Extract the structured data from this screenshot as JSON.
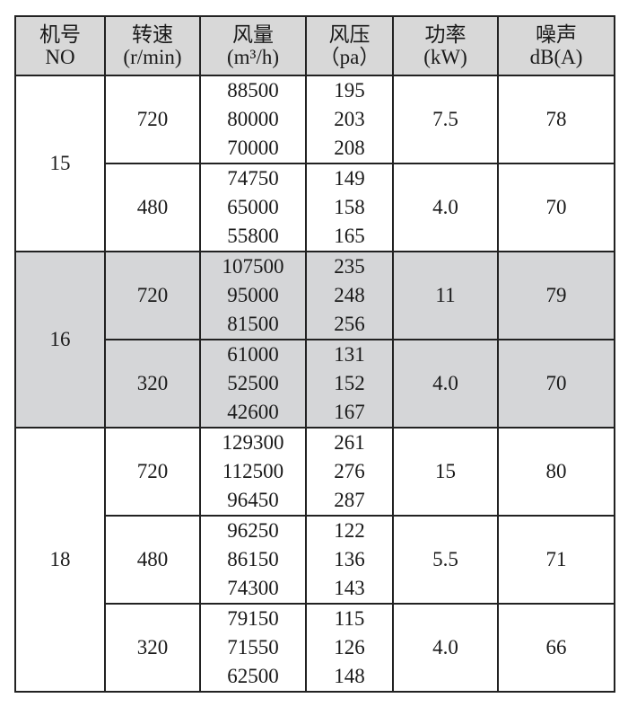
{
  "headers": [
    {
      "cn": "机号",
      "unit": "NO"
    },
    {
      "cn": "转速",
      "unit": "(r/min)"
    },
    {
      "cn": "风量",
      "unit": "(m³/h)"
    },
    {
      "cn": "风压",
      "unit": "（pa）"
    },
    {
      "cn": "功率",
      "unit": "(kW)"
    },
    {
      "cn": "噪声",
      "unit": "dB(A)"
    }
  ],
  "rows": [
    {
      "no": "15",
      "speed": "720",
      "flow": [
        "88500",
        "80000",
        "70000"
      ],
      "pressure": [
        "195",
        "203",
        "208"
      ],
      "power": "7.5",
      "noise": "78"
    },
    {
      "speed": "480",
      "flow": [
        "74750",
        "65000",
        "55800"
      ],
      "pressure": [
        "149",
        "158",
        "165"
      ],
      "power": "4.0",
      "noise": "70"
    },
    {
      "no": "16",
      "speed": "720",
      "flow": [
        "107500",
        "95000",
        "81500"
      ],
      "pressure": [
        "235",
        "248",
        "256"
      ],
      "power": "11",
      "noise": "79"
    },
    {
      "speed": "320",
      "flow": [
        "61000",
        "52500",
        "42600"
      ],
      "pressure": [
        "131",
        "152",
        "167"
      ],
      "power": "4.0",
      "noise": "70"
    },
    {
      "no": "18",
      "speed": "720",
      "flow": [
        "129300",
        "112500",
        "96450"
      ],
      "pressure": [
        "261",
        "276",
        "287"
      ],
      "power": "15",
      "noise": "80"
    },
    {
      "speed": "480",
      "flow": [
        "96250",
        "86150",
        "74300"
      ],
      "pressure": [
        "122",
        "136",
        "143"
      ],
      "power": "5.5",
      "noise": "71"
    },
    {
      "speed": "320",
      "flow": [
        "79150",
        "71550",
        "62500"
      ],
      "pressure": [
        "115",
        "126",
        "148"
      ],
      "power": "4.0",
      "noise": "66"
    }
  ],
  "colors": {
    "header_bg": "#d8d8d8",
    "shaded_group_bg": "#d5d6d8",
    "border": "#222222"
  }
}
